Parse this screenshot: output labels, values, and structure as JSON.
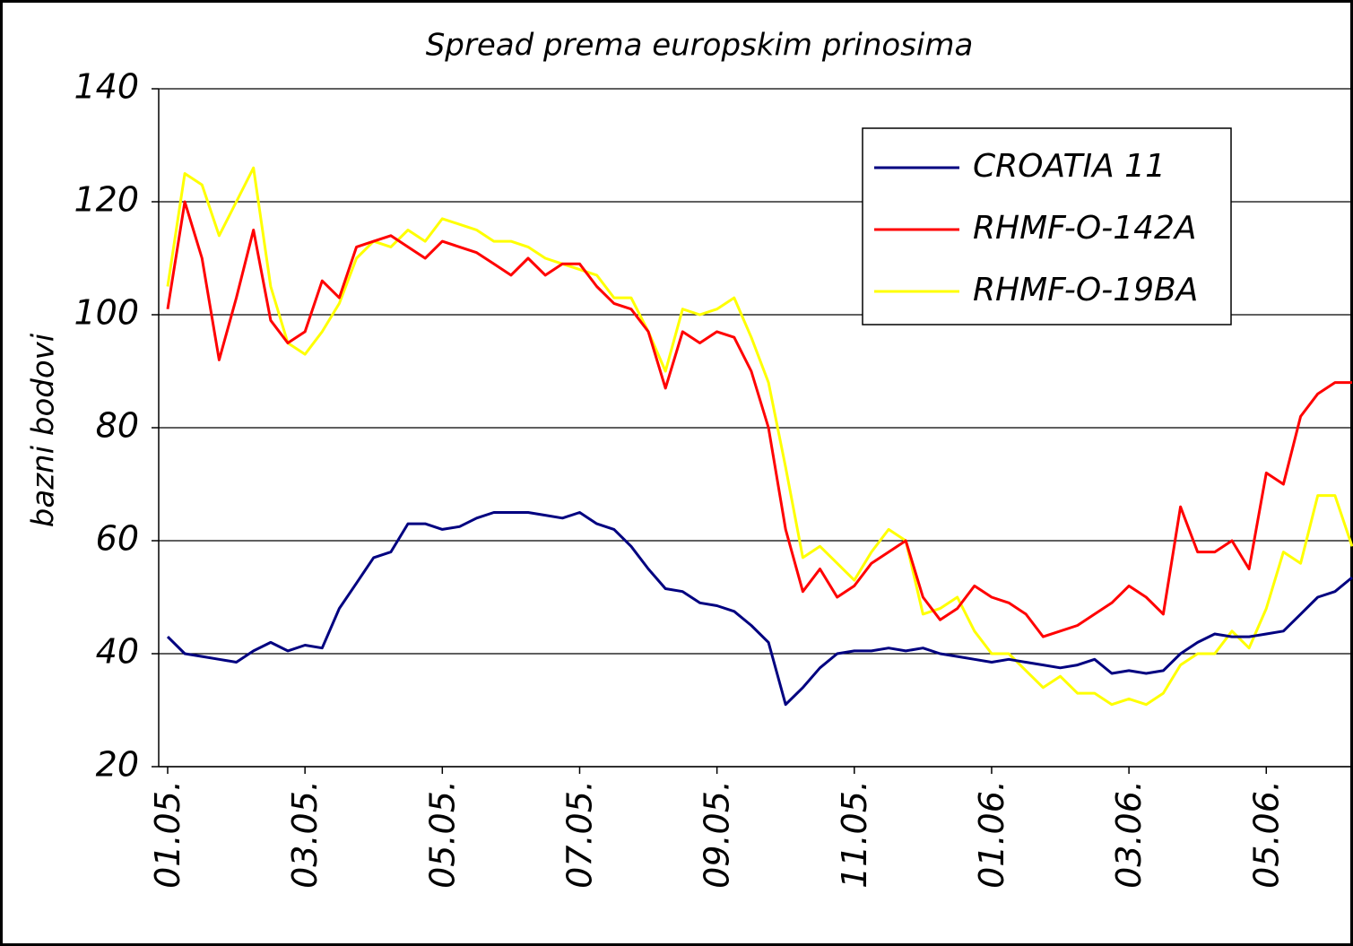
{
  "chart_data": {
    "type": "line",
    "title": "Spread prema europskim prinosima",
    "y_label": "bazni bodovi",
    "categories": [
      "01.05.",
      null,
      null,
      null,
      null,
      null,
      null,
      null,
      "03.05.",
      null,
      null,
      null,
      null,
      null,
      null,
      null,
      "05.05.",
      null,
      null,
      null,
      null,
      null,
      null,
      null,
      "07.05.",
      null,
      null,
      null,
      null,
      null,
      null,
      null,
      "09.05.",
      null,
      null,
      null,
      null,
      null,
      null,
      null,
      "11.05.",
      null,
      null,
      null,
      null,
      null,
      null,
      null,
      "01.06.",
      null,
      null,
      null,
      null,
      null,
      null,
      null,
      "03.06.",
      null,
      null,
      null,
      null,
      null,
      null,
      null,
      "05.06.",
      null,
      null,
      null,
      null,
      null
    ],
    "series": [
      {
        "name": "CROATIA 11",
        "color": "#000080",
        "values": [
          43,
          40,
          39.5,
          39,
          38.5,
          40.5,
          42,
          40.5,
          41.5,
          41,
          48,
          52.5,
          57,
          58,
          63,
          63,
          62,
          62.5,
          64,
          65,
          65,
          65,
          64.5,
          64,
          65,
          63,
          62,
          59,
          55,
          51.5,
          51,
          49,
          48.5,
          47.5,
          45,
          42,
          31,
          34,
          37.5,
          40,
          40.5,
          40.5,
          41,
          40.5,
          41,
          40,
          39.5,
          39,
          38.5,
          39,
          38.5,
          38,
          37.5,
          38,
          39,
          36.5,
          37,
          36.5,
          37,
          40,
          42,
          43.5,
          43,
          43,
          43.5,
          44,
          47,
          50,
          51,
          53.5
        ]
      },
      {
        "name": "RHMF-O-142A",
        "color": "#ff0000",
        "values": [
          101,
          120,
          110,
          92,
          103,
          115,
          99,
          95,
          97,
          106,
          103,
          112,
          113,
          114,
          112,
          110,
          113,
          112,
          111,
          109,
          107,
          110,
          107,
          109,
          109,
          105,
          102,
          101,
          97,
          87,
          97,
          95,
          97,
          96,
          90,
          80,
          62,
          51,
          55,
          50,
          52,
          56,
          58,
          60,
          50,
          46,
          48,
          52,
          50,
          49,
          47,
          43,
          44,
          45,
          47,
          49,
          52,
          50,
          47,
          66,
          58,
          58,
          60,
          55,
          72,
          70,
          82,
          86,
          88,
          88
        ]
      },
      {
        "name": "RHMF-O-19BA",
        "color": "#ffff00",
        "values": [
          105,
          125,
          123,
          114,
          120,
          126,
          105,
          95,
          93,
          97,
          102,
          110,
          113,
          112,
          115,
          113,
          117,
          116,
          115,
          113,
          113,
          112,
          110,
          109,
          108,
          107,
          103,
          103,
          97,
          90,
          101,
          100,
          101,
          103,
          96,
          88,
          73,
          57,
          59,
          56,
          53,
          58,
          62,
          60,
          47,
          48,
          50,
          44,
          40,
          40,
          37,
          34,
          36,
          33,
          33,
          31,
          32,
          31,
          33,
          38,
          40,
          40,
          44,
          41,
          48,
          58,
          56,
          68,
          68,
          59
        ]
      }
    ],
    "ylim": [
      20,
      140
    ],
    "yticks": [
      20,
      40,
      60,
      80,
      100,
      120,
      140
    ],
    "grid": true,
    "legend": "upper right"
  }
}
